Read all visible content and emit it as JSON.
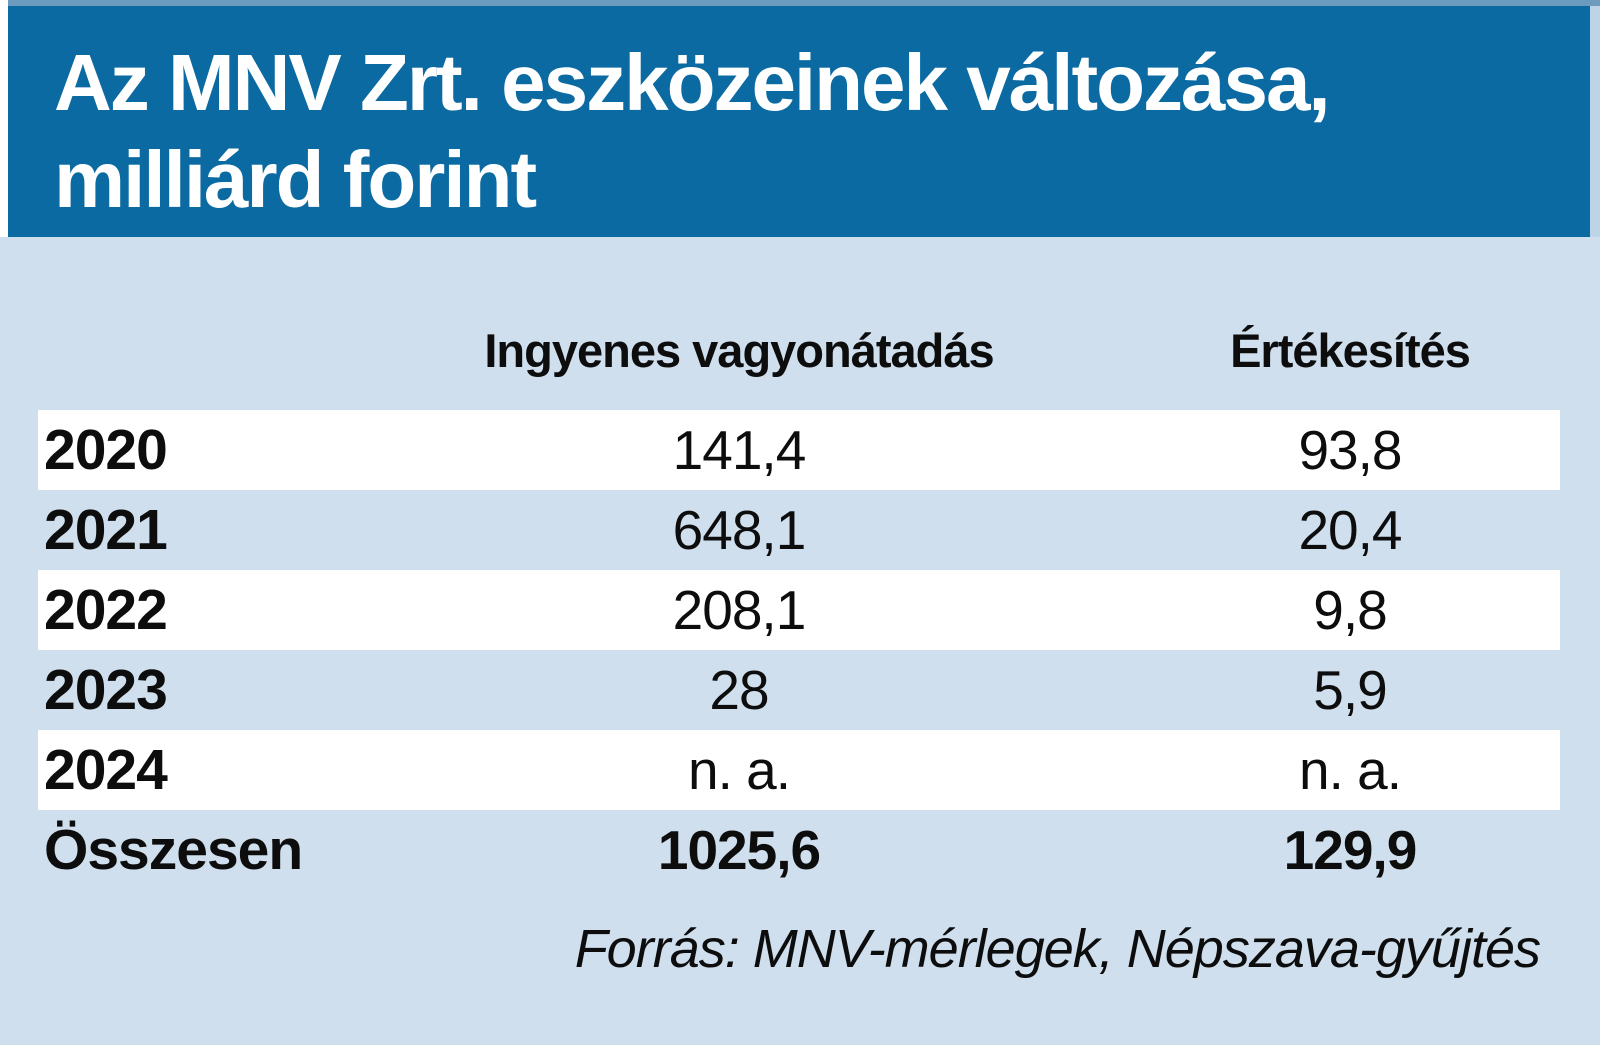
{
  "banner": {
    "title_line1": "Az MNV Zrt. eszközeinek változása,",
    "title_line2": "milliárd forint"
  },
  "chart_data": {
    "type": "table",
    "title": "Az MNV Zrt. eszközeinek változása, milliárd forint",
    "unit": "milliárd forint",
    "columns": [
      "",
      "Ingyenes vagyonátadás",
      "Értékesítés"
    ],
    "categories": [
      "2020",
      "2021",
      "2022",
      "2023",
      "2024",
      "Összesen"
    ],
    "series": [
      {
        "name": "Ingyenes vagyonátadás",
        "values": [
          141.4,
          648.1,
          208.1,
          28,
          null,
          1025.6
        ],
        "display": [
          "141,4",
          "648,1",
          "208,1",
          "28",
          "n. a.",
          "1025,6"
        ]
      },
      {
        "name": "Értékesítés",
        "values": [
          93.8,
          20.4,
          9.8,
          5.9,
          null,
          129.9
        ],
        "display": [
          "93,8",
          "20,4",
          "9,8",
          "5,9",
          "n. a.",
          "129,9"
        ]
      }
    ],
    "na_label": "n. a.",
    "source": "Forrás: MNV-mérlegek, Népszava-gyűjtés",
    "layout": {
      "row_striping": "white and light blue alternating",
      "value_alignment": "center",
      "total_row_bold": true
    }
  },
  "colors": {
    "banner_blue": "#0a6aa1",
    "background_light_blue": "#cfdfee",
    "row_white": "#ffffff",
    "text_black": "#0d0d0d",
    "title_white": "#ffffff"
  }
}
